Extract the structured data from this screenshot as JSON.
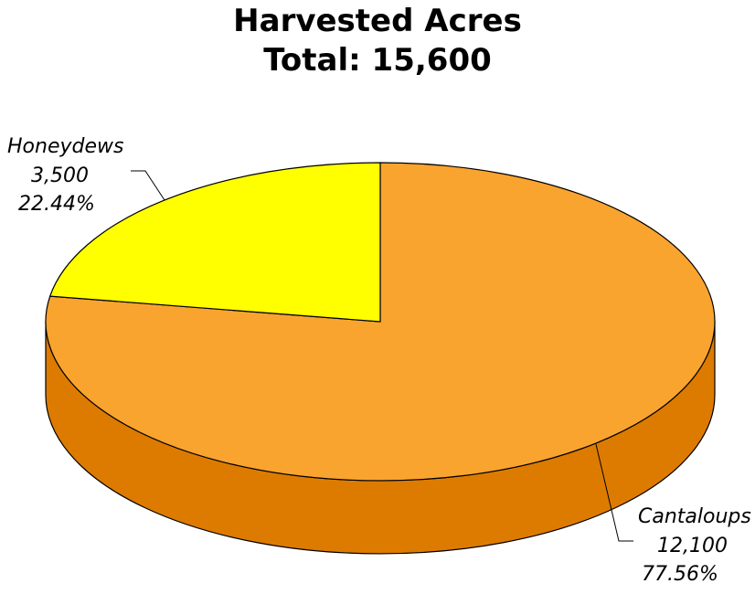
{
  "chart_data": {
    "type": "pie",
    "title": "Harvested Acres",
    "subtitle": "Total: 15,600",
    "three_d": true,
    "slices": [
      {
        "label": "Cantaloups",
        "value": 12100,
        "value_text": "12,100",
        "percent_text": "77.56%",
        "color": "#F9A42F",
        "side_color": "#DD7B00"
      },
      {
        "label": "Honeydews",
        "value": 3500,
        "value_text": "3,500",
        "percent_text": "22.44%",
        "color": "#FFFF00",
        "side_color": "#CFCF00"
      }
    ]
  }
}
